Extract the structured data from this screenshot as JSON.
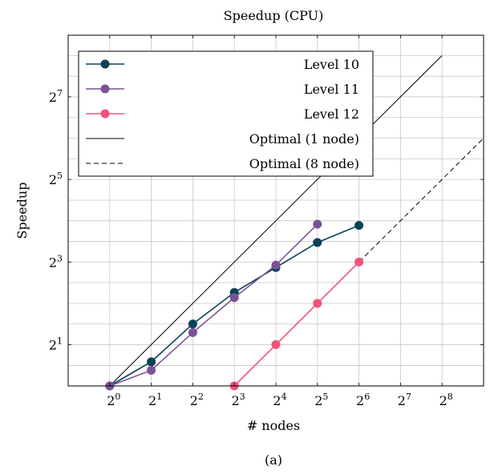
{
  "chart_data": {
    "type": "line",
    "title": "Speedup (CPU)",
    "xlabel": "# nodes",
    "ylabel": "Speedup",
    "caption": "(a)",
    "x_scale": "log2",
    "y_scale": "log2",
    "xlim": [
      0.5,
      512
    ],
    "ylim": [
      1,
      360
    ],
    "x_ticks": [
      {
        "value": 1,
        "base": "2",
        "exp": "0"
      },
      {
        "value": 2,
        "base": "2",
        "exp": "1"
      },
      {
        "value": 4,
        "base": "2",
        "exp": "2"
      },
      {
        "value": 8,
        "base": "2",
        "exp": "3"
      },
      {
        "value": 16,
        "base": "2",
        "exp": "4"
      },
      {
        "value": 32,
        "base": "2",
        "exp": "5"
      },
      {
        "value": 64,
        "base": "2",
        "exp": "6"
      },
      {
        "value": 128,
        "base": "2",
        "exp": "7"
      },
      {
        "value": 256,
        "base": "2",
        "exp": "8"
      }
    ],
    "y_ticks": [
      {
        "value": 2,
        "base": "2",
        "exp": "1"
      },
      {
        "value": 8,
        "base": "2",
        "exp": "3"
      },
      {
        "value": 32,
        "base": "2",
        "exp": "5"
      },
      {
        "value": 128,
        "base": "2",
        "exp": "7"
      }
    ],
    "y_grid": [
      1.41,
      2,
      2.83,
      4,
      5.66,
      8,
      11.3,
      16,
      22.6,
      32,
      45.3,
      64,
      90.5,
      128,
      181,
      256
    ],
    "grid": true,
    "legend_position": "top-left",
    "series": [
      {
        "name": "Level 10",
        "color": "#0b4257",
        "marker": true,
        "dashed": false,
        "x": [
          1,
          2,
          4,
          8,
          16,
          32,
          64
        ],
        "y": [
          1,
          1.5,
          2.83,
          4.8,
          7.3,
          11.1,
          14.8
        ]
      },
      {
        "name": "Level 11",
        "color": "#7b5298",
        "marker": true,
        "dashed": false,
        "x": [
          1,
          2,
          4,
          8,
          16,
          32
        ],
        "y": [
          1,
          1.3,
          2.45,
          4.4,
          7.6,
          15.1
        ]
      },
      {
        "name": "Level 12",
        "color": "#f0527a",
        "marker": true,
        "dashed": false,
        "x": [
          8,
          16,
          32,
          64
        ],
        "y": [
          1,
          2,
          4,
          8
        ]
      },
      {
        "name": "Optimal (1 node)",
        "color": "#000000",
        "marker": false,
        "dashed": false,
        "x": [
          1,
          256
        ],
        "y": [
          1,
          256
        ]
      },
      {
        "name": "Optimal (8 node)",
        "color": "#000000",
        "marker": false,
        "dashed": true,
        "x": [
          8,
          512
        ],
        "y": [
          1,
          64
        ]
      }
    ]
  }
}
